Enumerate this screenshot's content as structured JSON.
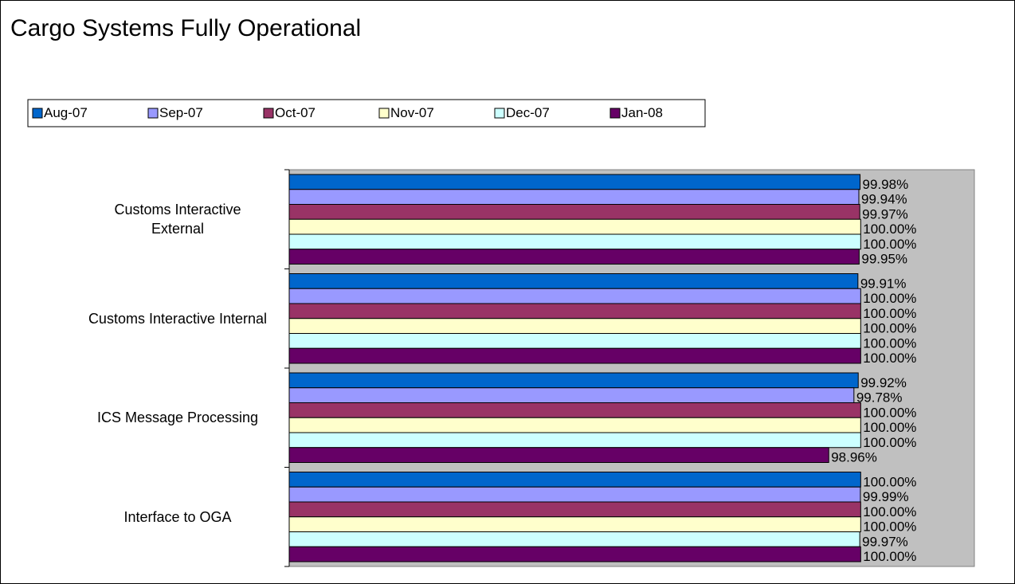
{
  "chart_data": {
    "type": "hbar",
    "title": "Cargo Systems Fully Operational",
    "categories": [
      "Customs Interactive External",
      "Customs Interactive Internal",
      "ICS Message Processing",
      "Interface to OGA"
    ],
    "series": [
      {
        "name": "Aug-07",
        "color": "#0066cc",
        "values": [
          99.98,
          99.91,
          99.92,
          100.0
        ],
        "value_labels": [
          "99.98%",
          "99.91%",
          "99.92%",
          "100.00%"
        ]
      },
      {
        "name": "Sep-07",
        "color": "#9999ff",
        "values": [
          99.94,
          100.0,
          99.78,
          99.99
        ],
        "value_labels": [
          "99.94%",
          "100.00%",
          "99.78%",
          "99.99%"
        ]
      },
      {
        "name": "Oct-07",
        "color": "#993366",
        "values": [
          99.97,
          100.0,
          100.0,
          100.0
        ],
        "value_labels": [
          "99.97%",
          "100.00%",
          "100.00%",
          "100.00%"
        ]
      },
      {
        "name": "Nov-07",
        "color": "#ffffcc",
        "values": [
          100.0,
          100.0,
          100.0,
          100.0
        ],
        "value_labels": [
          "100.00%",
          "100.00%",
          "100.00%",
          "100.00%"
        ]
      },
      {
        "name": "Dec-07",
        "color": "#ccffff",
        "values": [
          100.0,
          100.0,
          100.0,
          99.97
        ],
        "value_labels": [
          "100.00%",
          "100.00%",
          "100.00%",
          "99.97%"
        ]
      },
      {
        "name": "Jan-08",
        "color": "#660066",
        "values": [
          99.95,
          100.0,
          98.96,
          100.0
        ],
        "value_labels": [
          "99.95%",
          "100.00%",
          "98.96%",
          "100.00%"
        ]
      }
    ],
    "xlim": [
      81.4,
      103.7
    ],
    "plot_background": "#c0c0c0"
  }
}
